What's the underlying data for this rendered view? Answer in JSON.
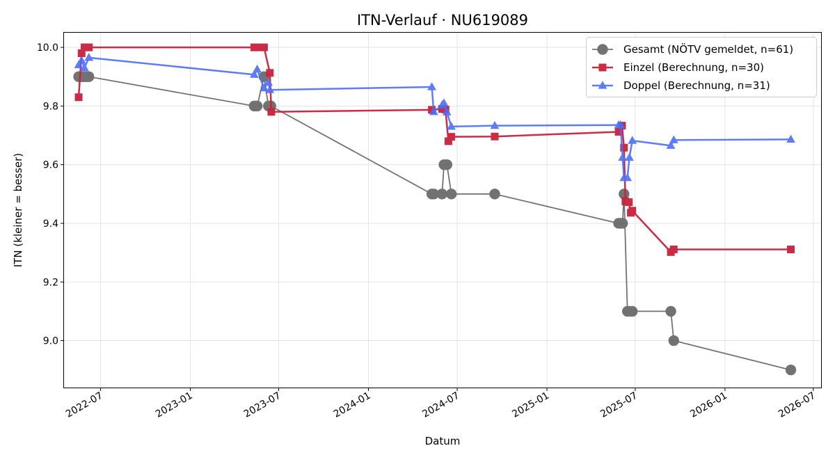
{
  "chart_data": {
    "type": "line",
    "title": "ITN-Verlauf · NU619089",
    "xlabel": "Datum",
    "ylabel": "ITN  (kleiner = besser)",
    "xlim": [
      "2022-04-17",
      "2026-07-17"
    ],
    "ylim": [
      8.84,
      10.05
    ],
    "y_ticks": [
      9.0,
      9.2,
      9.4,
      9.6,
      9.8,
      10.0
    ],
    "y_tick_labels": [
      "9.0",
      "9.2",
      "9.4",
      "9.6",
      "9.8",
      "10.0"
    ],
    "x_ticks": [
      "2022-07-01",
      "2023-01-01",
      "2023-07-01",
      "2024-01-01",
      "2024-07-01",
      "2025-01-01",
      "2025-07-01",
      "2026-01-01",
      "2026-07-01"
    ],
    "x_tick_labels": [
      "2022-07",
      "2023-01",
      "2023-07",
      "2024-01",
      "2024-07",
      "2025-01",
      "2025-07",
      "2026-01",
      "2026-07"
    ],
    "grid": true,
    "legend_position": "top-right",
    "series": [
      {
        "name": "Gesamt (NÖTV gemeldet, n=61)",
        "color": "#444444",
        "marker": "circle",
        "points": [
          {
            "x": "2022-05-17",
            "y": 9.9
          },
          {
            "x": "2022-05-20",
            "y": 9.9
          },
          {
            "x": "2022-05-23",
            "y": 9.9
          },
          {
            "x": "2022-05-26",
            "y": 9.9
          },
          {
            "x": "2022-05-29",
            "y": 9.9
          },
          {
            "x": "2022-06-01",
            "y": 9.9
          },
          {
            "x": "2022-06-04",
            "y": 9.9
          },
          {
            "x": "2022-06-07",
            "y": 9.9
          },
          {
            "x": "2023-05-12",
            "y": 9.8
          },
          {
            "x": "2023-05-18",
            "y": 9.8
          },
          {
            "x": "2023-06-01",
            "y": 9.9
          },
          {
            "x": "2023-06-10",
            "y": 9.8
          },
          {
            "x": "2023-06-15",
            "y": 9.8
          },
          {
            "x": "2024-05-10",
            "y": 9.5
          },
          {
            "x": "2024-05-14",
            "y": 9.5
          },
          {
            "x": "2024-05-31",
            "y": 9.5
          },
          {
            "x": "2024-06-04",
            "y": 9.6
          },
          {
            "x": "2024-06-10",
            "y": 9.6
          },
          {
            "x": "2024-06-19",
            "y": 9.5
          },
          {
            "x": "2024-09-16",
            "y": 9.5
          },
          {
            "x": "2025-05-28",
            "y": 9.4
          },
          {
            "x": "2025-06-01",
            "y": 9.4
          },
          {
            "x": "2025-06-05",
            "y": 9.4
          },
          {
            "x": "2025-06-08",
            "y": 9.5
          },
          {
            "x": "2025-06-15",
            "y": 9.1
          },
          {
            "x": "2025-06-19",
            "y": 9.1
          },
          {
            "x": "2025-06-25",
            "y": 9.1
          },
          {
            "x": "2025-09-12",
            "y": 9.1
          },
          {
            "x": "2025-09-18",
            "y": 9.0
          },
          {
            "x": "2026-05-16",
            "y": 8.9
          }
        ]
      },
      {
        "name": "Einzel (Berechnung, n=30)",
        "color": "#c8203c",
        "marker": "square",
        "points": [
          {
            "x": "2022-05-17",
            "y": 9.83
          },
          {
            "x": "2022-05-23",
            "y": 9.98
          },
          {
            "x": "2022-05-29",
            "y": 10.0
          },
          {
            "x": "2022-06-04",
            "y": 10.0
          },
          {
            "x": "2022-06-07",
            "y": 10.0
          },
          {
            "x": "2023-05-12",
            "y": 10.0
          },
          {
            "x": "2023-05-18",
            "y": 10.0
          },
          {
            "x": "2023-06-01",
            "y": 10.0
          },
          {
            "x": "2023-06-13",
            "y": 9.913
          },
          {
            "x": "2023-06-16",
            "y": 9.78
          },
          {
            "x": "2024-05-10",
            "y": 9.787
          },
          {
            "x": "2024-05-31",
            "y": 9.79
          },
          {
            "x": "2024-06-07",
            "y": 9.788
          },
          {
            "x": "2024-06-13",
            "y": 9.68
          },
          {
            "x": "2024-06-19",
            "y": 9.695
          },
          {
            "x": "2024-09-16",
            "y": 9.696
          },
          {
            "x": "2025-05-28",
            "y": 9.712
          },
          {
            "x": "2025-06-04",
            "y": 9.733
          },
          {
            "x": "2025-06-08",
            "y": 9.658
          },
          {
            "x": "2025-06-11",
            "y": 9.475
          },
          {
            "x": "2025-06-18",
            "y": 9.472
          },
          {
            "x": "2025-06-22",
            "y": 9.436
          },
          {
            "x": "2025-06-25",
            "y": 9.443
          },
          {
            "x": "2025-09-12",
            "y": 9.302
          },
          {
            "x": "2025-09-18",
            "y": 9.311
          },
          {
            "x": "2026-05-16",
            "y": 9.311
          }
        ]
      },
      {
        "name": "Doppel (Berechnung, n=31)",
        "color": "#4c6ef5",
        "marker": "triangle",
        "points": [
          {
            "x": "2022-05-17",
            "y": 9.94
          },
          {
            "x": "2022-05-23",
            "y": 9.955
          },
          {
            "x": "2022-05-29",
            "y": 9.93
          },
          {
            "x": "2022-06-07",
            "y": 9.965
          },
          {
            "x": "2023-05-12",
            "y": 9.907
          },
          {
            "x": "2023-05-18",
            "y": 9.925
          },
          {
            "x": "2023-06-01",
            "y": 9.861
          },
          {
            "x": "2023-06-10",
            "y": 9.88
          },
          {
            "x": "2023-06-13",
            "y": 9.855
          },
          {
            "x": "2024-05-10",
            "y": 9.865
          },
          {
            "x": "2024-05-14",
            "y": 9.78
          },
          {
            "x": "2024-05-31",
            "y": 9.803
          },
          {
            "x": "2024-06-04",
            "y": 9.81
          },
          {
            "x": "2024-06-10",
            "y": 9.779
          },
          {
            "x": "2024-06-19",
            "y": 9.73
          },
          {
            "x": "2024-09-16",
            "y": 9.733
          },
          {
            "x": "2025-05-28",
            "y": 9.735
          },
          {
            "x": "2025-06-01",
            "y": 9.735
          },
          {
            "x": "2025-06-05",
            "y": 9.624
          },
          {
            "x": "2025-06-08",
            "y": 9.555
          },
          {
            "x": "2025-06-15",
            "y": 9.555
          },
          {
            "x": "2025-06-19",
            "y": 9.624
          },
          {
            "x": "2025-06-25",
            "y": 9.682
          },
          {
            "x": "2025-09-12",
            "y": 9.665
          },
          {
            "x": "2025-09-18",
            "y": 9.684
          },
          {
            "x": "2026-05-16",
            "y": 9.686
          }
        ]
      }
    ]
  }
}
